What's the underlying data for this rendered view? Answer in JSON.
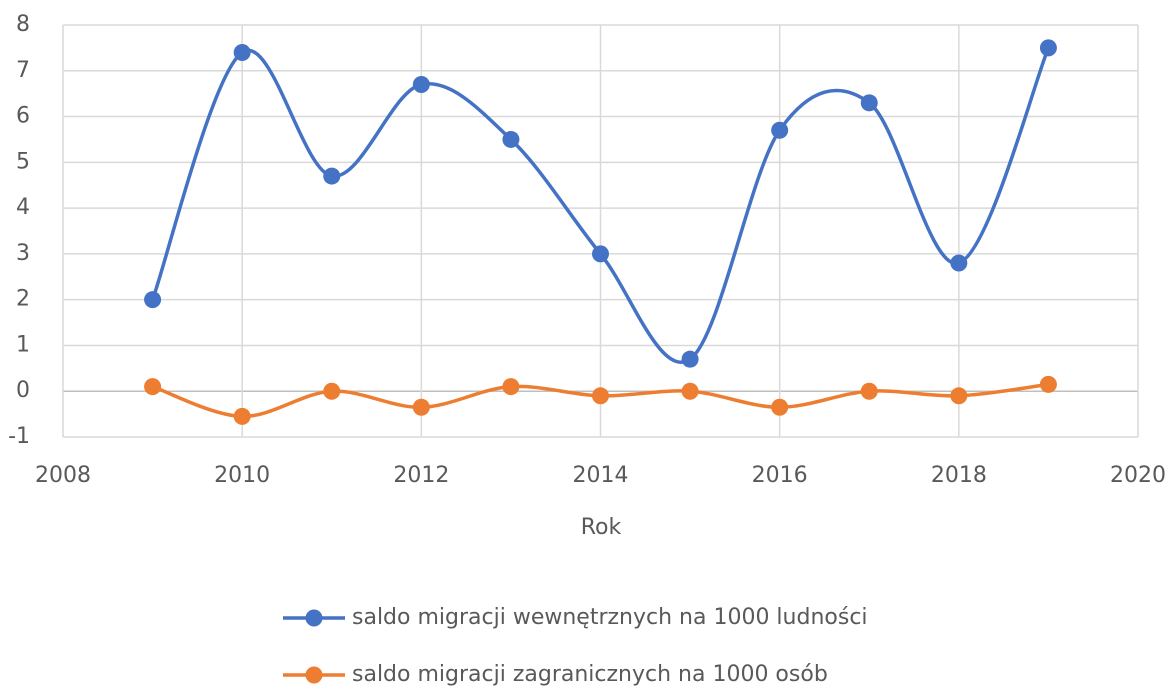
{
  "chart_data": {
    "type": "line",
    "x": [
      2009,
      2010,
      2011,
      2012,
      2013,
      2014,
      2015,
      2016,
      2017,
      2018,
      2019
    ],
    "series": [
      {
        "name": "saldo migracji wewnętrznych na 1000 ludności",
        "color": "#4472c4",
        "values": [
          2.0,
          7.4,
          4.7,
          6.7,
          5.5,
          3.0,
          0.7,
          5.7,
          6.3,
          2.8,
          7.5
        ]
      },
      {
        "name": "saldo migracji zagranicznych na 1000 osób",
        "color": "#ed7d31",
        "values": [
          0.1,
          -0.55,
          0.0,
          -0.35,
          0.1,
          -0.1,
          0.0,
          -0.35,
          0.0,
          -0.1,
          0.15
        ]
      }
    ],
    "x_label": "Rok",
    "xlim": [
      2008,
      2020
    ],
    "xticks": [
      2008,
      2010,
      2012,
      2014,
      2016,
      2018,
      2020
    ],
    "ylim": [
      -1,
      8
    ],
    "yticks": [
      -1,
      0,
      1,
      2,
      3,
      4,
      5,
      6,
      7,
      8
    ],
    "grid": true,
    "smooth": true,
    "legend": "bottom"
  }
}
